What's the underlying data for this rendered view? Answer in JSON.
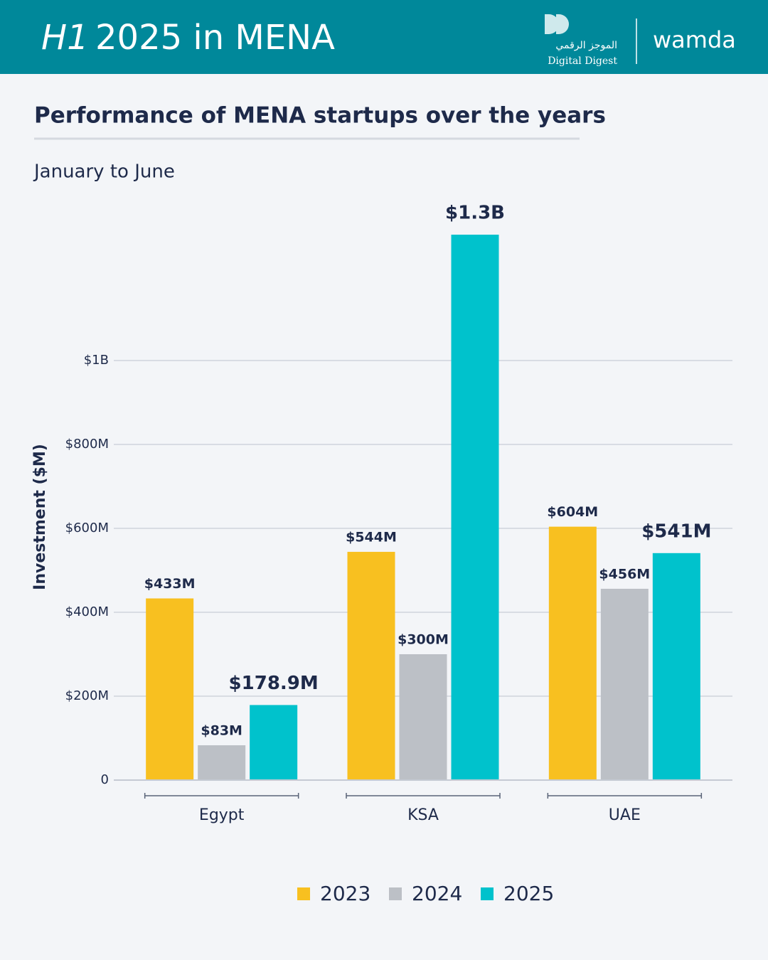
{
  "header": {
    "title_italic": "H1",
    "title_rest": "2025 in MENA",
    "logo_arabic": "الموجز الرقمي",
    "logo_english": "Digital Digest",
    "brand": "wamda"
  },
  "chart_data": {
    "type": "bar",
    "title": "Performance of MENA startups over the years",
    "subtitle": "January to June",
    "y_label": "Investment ($M)",
    "categories": [
      "Egypt",
      "KSA",
      "UAE"
    ],
    "series": [
      {
        "name": "2023",
        "color": "#f8c020",
        "values": [
          433,
          544,
          604
        ],
        "value_labels": [
          "$433M",
          "$544M",
          "$604M"
        ]
      },
      {
        "name": "2024",
        "color": "#bcc0c6",
        "values": [
          83,
          300,
          456
        ],
        "value_labels": [
          "$83M",
          "$300M",
          "$456M"
        ]
      },
      {
        "name": "2025",
        "color": "#00c2cc",
        "values": [
          178.9,
          1300,
          541
        ],
        "value_labels": [
          "$178.9M",
          "$1.3B",
          "$541M"
        ]
      }
    ],
    "ylim": [
      0,
      1300
    ],
    "yticks": [
      0,
      {
        "value": 200,
        "label": "$200M"
      },
      {
        "value": 400,
        "label": "$400M"
      },
      {
        "value": 600,
        "label": "$600M"
      },
      {
        "value": 800,
        "label": "$800M"
      },
      {
        "value": 1000,
        "label": "$1B"
      }
    ],
    "grid": true
  }
}
